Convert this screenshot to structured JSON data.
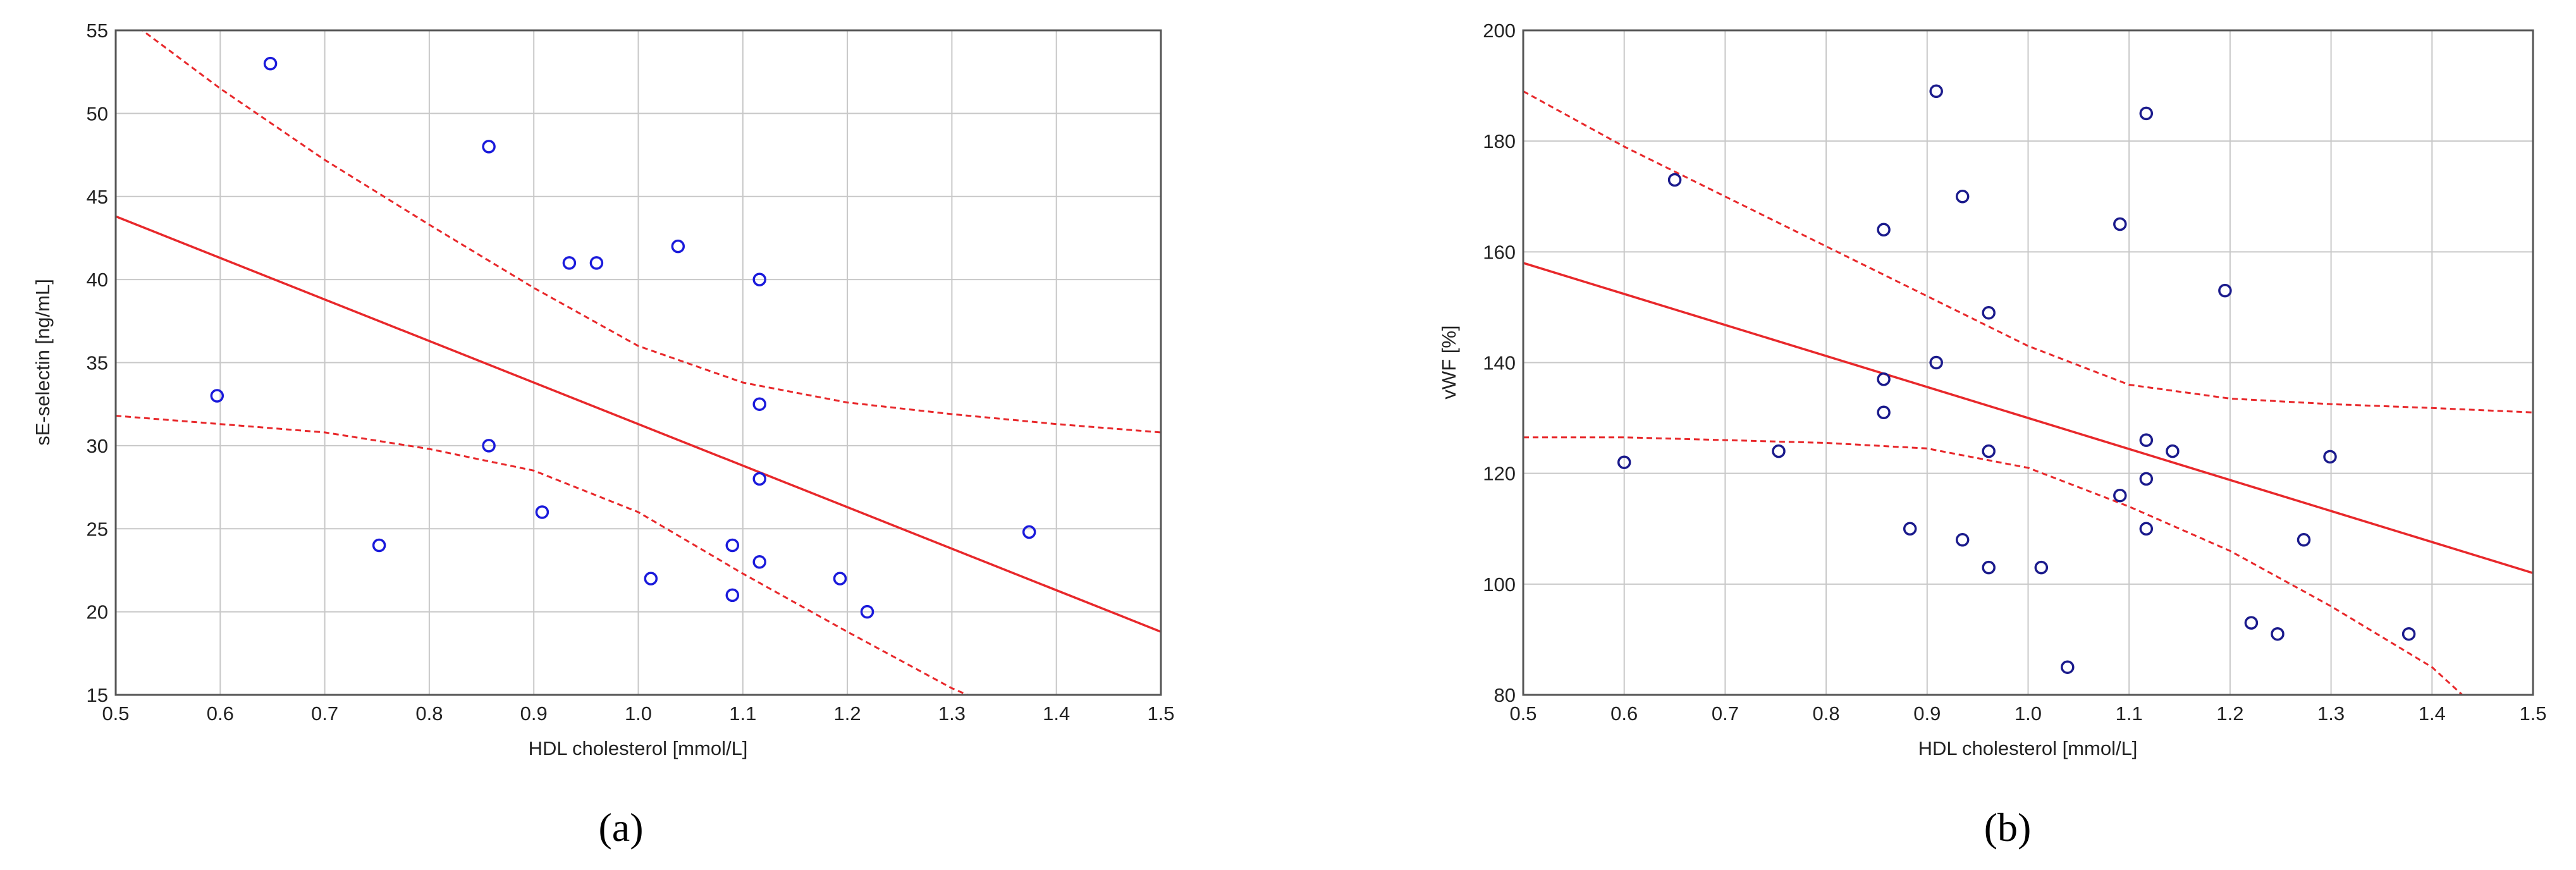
{
  "chart_data": [
    {
      "type": "scatter",
      "panel_label": "(a)",
      "xlabel": "HDL cholesterol [mmol/L]",
      "ylabel": "sE-selectin [ng/mL]",
      "xlim": [
        0.5,
        1.5
      ],
      "ylim": [
        15,
        55
      ],
      "x_ticks": [
        "0.5",
        "0.6",
        "0.7",
        "0.8",
        "0.9",
        "1.0",
        "1.1",
        "1.2",
        "1.3",
        "1.4",
        "1.5"
      ],
      "y_ticks": [
        "15",
        "20",
        "25",
        "30",
        "35",
        "40",
        "45",
        "50",
        "55"
      ],
      "grid": true,
      "point_color": "#1a1adb",
      "line_color": "#e8282b",
      "points": [
        {
          "x": 0.597,
          "y": 33
        },
        {
          "x": 0.648,
          "y": 53
        },
        {
          "x": 0.752,
          "y": 24
        },
        {
          "x": 0.857,
          "y": 48
        },
        {
          "x": 0.857,
          "y": 30
        },
        {
          "x": 0.908,
          "y": 26
        },
        {
          "x": 0.934,
          "y": 41
        },
        {
          "x": 0.96,
          "y": 41
        },
        {
          "x": 1.012,
          "y": 22
        },
        {
          "x": 1.038,
          "y": 42
        },
        {
          "x": 1.09,
          "y": 24
        },
        {
          "x": 1.09,
          "y": 21
        },
        {
          "x": 1.116,
          "y": 40
        },
        {
          "x": 1.116,
          "y": 32.5
        },
        {
          "x": 1.116,
          "y": 28
        },
        {
          "x": 1.116,
          "y": 23
        },
        {
          "x": 1.193,
          "y": 22
        },
        {
          "x": 1.219,
          "y": 20
        },
        {
          "x": 1.374,
          "y": 24.8
        }
      ],
      "fit_line": [
        {
          "x": 0.5,
          "y": 43.8
        },
        {
          "x": 1.5,
          "y": 18.8
        }
      ],
      "ci_upper": [
        {
          "x": 0.5,
          "y": 56.2
        },
        {
          "x": 0.6,
          "y": 51.5
        },
        {
          "x": 0.7,
          "y": 47.2
        },
        {
          "x": 0.8,
          "y": 43.3
        },
        {
          "x": 0.9,
          "y": 39.5
        },
        {
          "x": 1.0,
          "y": 36.0
        },
        {
          "x": 1.1,
          "y": 33.8
        },
        {
          "x": 1.2,
          "y": 32.6
        },
        {
          "x": 1.3,
          "y": 31.9
        },
        {
          "x": 1.4,
          "y": 31.3
        },
        {
          "x": 1.5,
          "y": 30.8
        }
      ],
      "ci_lower": [
        {
          "x": 0.5,
          "y": 31.8
        },
        {
          "x": 0.6,
          "y": 31.3
        },
        {
          "x": 0.7,
          "y": 30.8
        },
        {
          "x": 0.8,
          "y": 29.8
        },
        {
          "x": 0.9,
          "y": 28.5
        },
        {
          "x": 1.0,
          "y": 26.0
        },
        {
          "x": 1.1,
          "y": 22.3
        },
        {
          "x": 1.2,
          "y": 18.8
        },
        {
          "x": 1.3,
          "y": 15.4
        },
        {
          "x": 1.315,
          "y": 15.0
        }
      ]
    },
    {
      "type": "scatter",
      "panel_label": "(b)",
      "xlabel": "HDL cholesterol [mmol/L]",
      "ylabel": "vWF [%]",
      "xlim": [
        0.5,
        1.5
      ],
      "ylim": [
        80,
        200
      ],
      "x_ticks": [
        "0.5",
        "0.6",
        "0.7",
        "0.8",
        "0.9",
        "1.0",
        "1.1",
        "1.2",
        "1.3",
        "1.4",
        "1.5"
      ],
      "y_ticks": [
        "80",
        "100",
        "120",
        "140",
        "160",
        "180",
        "200"
      ],
      "grid": true,
      "point_color": "#1a1a8c",
      "line_color": "#e8282b",
      "points": [
        {
          "x": 0.6,
          "y": 122
        },
        {
          "x": 0.65,
          "y": 173
        },
        {
          "x": 0.753,
          "y": 124
        },
        {
          "x": 0.857,
          "y": 164
        },
        {
          "x": 0.857,
          "y": 137
        },
        {
          "x": 0.857,
          "y": 131
        },
        {
          "x": 0.883,
          "y": 110
        },
        {
          "x": 0.909,
          "y": 189
        },
        {
          "x": 0.909,
          "y": 140
        },
        {
          "x": 0.935,
          "y": 170
        },
        {
          "x": 0.935,
          "y": 108
        },
        {
          "x": 0.961,
          "y": 149
        },
        {
          "x": 0.961,
          "y": 124
        },
        {
          "x": 0.961,
          "y": 103
        },
        {
          "x": 1.013,
          "y": 103
        },
        {
          "x": 1.039,
          "y": 85
        },
        {
          "x": 1.091,
          "y": 165
        },
        {
          "x": 1.091,
          "y": 116
        },
        {
          "x": 1.117,
          "y": 185
        },
        {
          "x": 1.117,
          "y": 126
        },
        {
          "x": 1.117,
          "y": 119
        },
        {
          "x": 1.117,
          "y": 110
        },
        {
          "x": 1.143,
          "y": 124
        },
        {
          "x": 1.195,
          "y": 153
        },
        {
          "x": 1.221,
          "y": 93
        },
        {
          "x": 1.247,
          "y": 91
        },
        {
          "x": 1.273,
          "y": 108
        },
        {
          "x": 1.299,
          "y": 123
        },
        {
          "x": 1.377,
          "y": 91
        }
      ],
      "fit_line": [
        {
          "x": 0.5,
          "y": 158
        },
        {
          "x": 1.5,
          "y": 102
        }
      ],
      "ci_upper": [
        {
          "x": 0.5,
          "y": 189
        },
        {
          "x": 0.6,
          "y": 179
        },
        {
          "x": 0.7,
          "y": 170
        },
        {
          "x": 0.8,
          "y": 161
        },
        {
          "x": 0.9,
          "y": 152
        },
        {
          "x": 1.0,
          "y": 143
        },
        {
          "x": 1.1,
          "y": 136
        },
        {
          "x": 1.2,
          "y": 133.5
        },
        {
          "x": 1.3,
          "y": 132.5
        },
        {
          "x": 1.4,
          "y": 131.8
        },
        {
          "x": 1.5,
          "y": 131
        }
      ],
      "ci_lower": [
        {
          "x": 0.5,
          "y": 126.5
        },
        {
          "x": 0.6,
          "y": 126.5
        },
        {
          "x": 0.7,
          "y": 126
        },
        {
          "x": 0.8,
          "y": 125.5
        },
        {
          "x": 0.9,
          "y": 124.5
        },
        {
          "x": 1.0,
          "y": 121
        },
        {
          "x": 1.1,
          "y": 114
        },
        {
          "x": 1.2,
          "y": 106
        },
        {
          "x": 1.3,
          "y": 96
        },
        {
          "x": 1.4,
          "y": 85
        },
        {
          "x": 1.43,
          "y": 80
        }
      ]
    }
  ]
}
